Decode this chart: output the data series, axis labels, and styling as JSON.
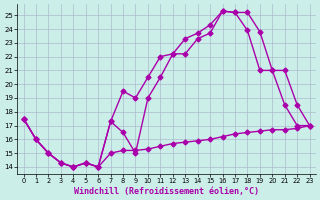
{
  "background_color": "#cceee8",
  "grid_color": "#aabbcc",
  "line_color": "#aa00aa",
  "xlim": [
    -0.5,
    23.5
  ],
  "ylim": [
    13.5,
    25.8
  ],
  "yticks": [
    14,
    15,
    16,
    17,
    18,
    19,
    20,
    21,
    22,
    23,
    24,
    25
  ],
  "xticks": [
    0,
    1,
    2,
    3,
    4,
    5,
    6,
    7,
    8,
    9,
    10,
    11,
    12,
    13,
    14,
    15,
    16,
    17,
    18,
    19,
    20,
    21,
    22,
    23
  ],
  "xlabel": "Windchill (Refroidissement éolien,°C)",
  "line1_x": [
    0,
    1,
    2,
    3,
    4,
    5,
    6,
    7,
    8,
    9,
    10,
    11,
    12,
    13,
    14,
    15,
    16,
    17,
    18,
    19,
    20,
    21,
    22,
    23
  ],
  "line1_y": [
    17.5,
    16.0,
    15.0,
    14.3,
    14.0,
    14.3,
    14.0,
    17.3,
    19.5,
    19.0,
    20.5,
    22.0,
    22.2,
    23.3,
    23.7,
    24.3,
    25.3,
    25.2,
    25.2,
    23.8,
    21.0,
    21.0,
    18.5,
    17.0
  ],
  "line2_x": [
    0,
    1,
    2,
    3,
    4,
    5,
    6,
    7,
    8,
    9,
    10,
    11,
    12,
    13,
    14,
    15,
    16,
    17,
    18,
    19,
    20,
    21,
    22,
    23
  ],
  "line2_y": [
    17.5,
    16.0,
    15.0,
    14.3,
    14.0,
    14.3,
    14.0,
    17.3,
    16.5,
    15.0,
    19.0,
    20.5,
    22.2,
    22.2,
    23.3,
    23.7,
    25.3,
    25.2,
    23.9,
    21.0,
    21.0,
    18.5,
    17.0,
    17.0
  ],
  "line3_x": [
    0,
    1,
    2,
    3,
    4,
    5,
    6,
    7,
    8,
    9,
    10,
    11,
    12,
    13,
    14,
    15,
    16,
    17,
    18,
    19,
    20,
    21,
    22,
    23
  ],
  "line3_y": [
    17.5,
    16.0,
    15.0,
    14.3,
    14.0,
    14.3,
    14.0,
    15.0,
    15.2,
    15.2,
    15.3,
    15.5,
    15.7,
    15.8,
    15.9,
    16.0,
    16.2,
    16.4,
    16.5,
    16.6,
    16.7,
    16.7,
    16.8,
    17.0
  ],
  "marker": "D",
  "markersize": 2.5,
  "linewidth": 1.0
}
